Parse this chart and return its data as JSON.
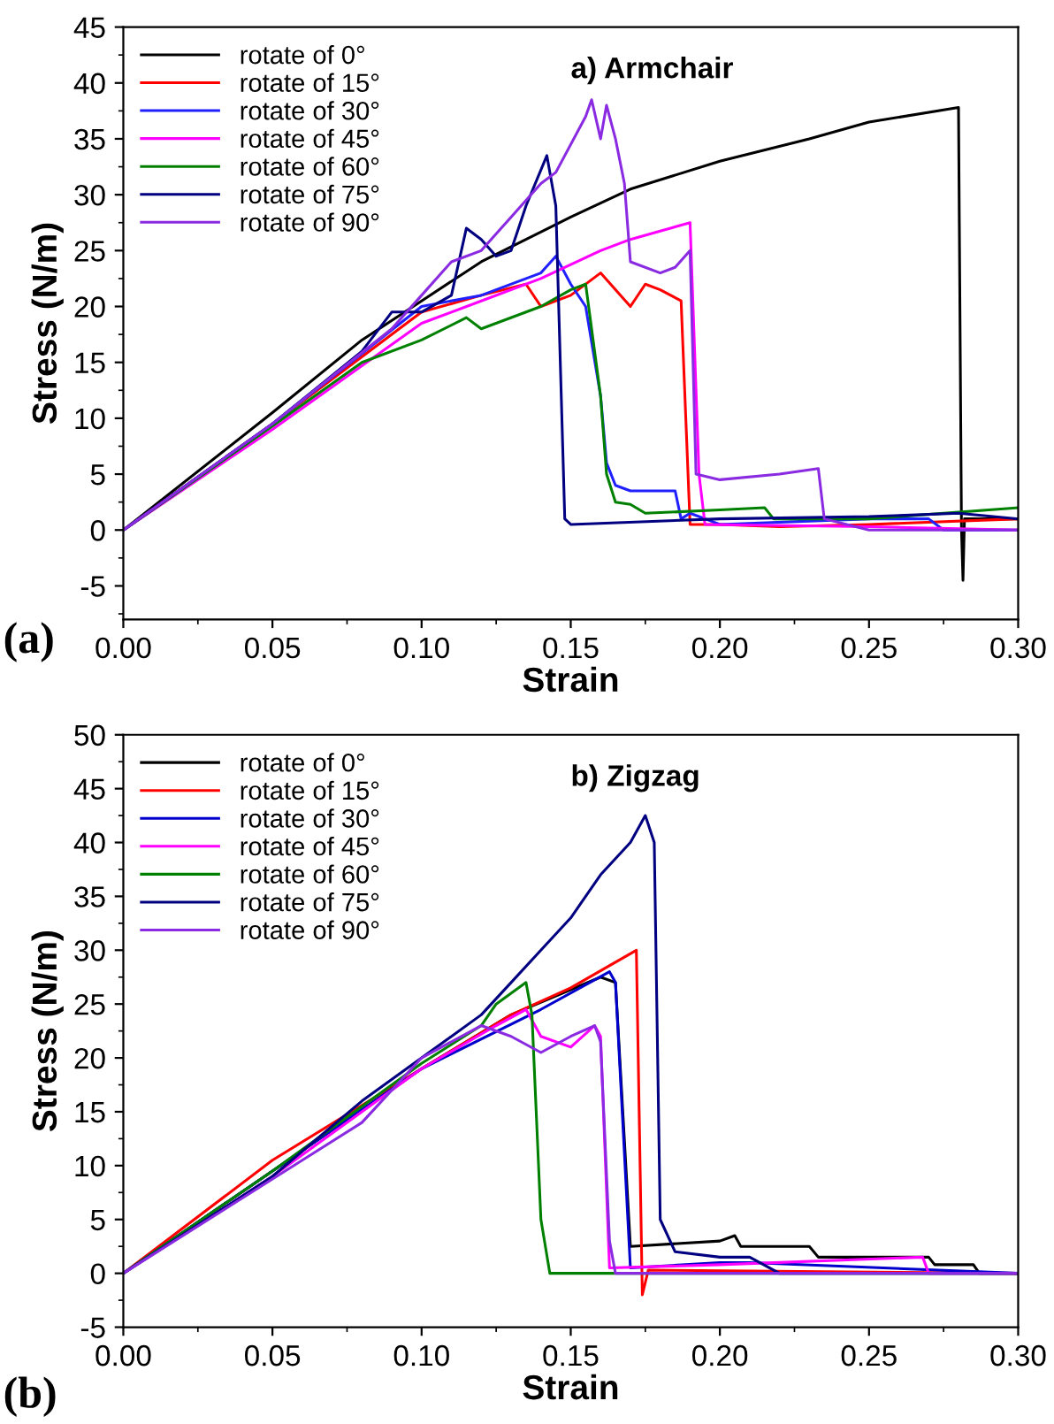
{
  "chart_data": [
    {
      "type": "line",
      "title": "a) Armchair",
      "xlabel": "Strain",
      "ylabel": "Stress (N/m)",
      "annotations": [
        "(a)"
      ],
      "xlim": [
        0,
        0.3
      ],
      "ylim": [
        -8,
        45
      ],
      "xticks": [
        {
          "value": 0,
          "label": "0.00"
        },
        {
          "value": 0.05,
          "label": "0.05"
        },
        {
          "value": 0.1,
          "label": "0.10"
        },
        {
          "value": 0.15,
          "label": "0.15"
        },
        {
          "value": 0.2,
          "label": "0.20"
        },
        {
          "value": 0.25,
          "label": "0.25"
        },
        {
          "value": 0.3,
          "label": "0.30"
        }
      ],
      "yticks": [
        -5,
        0,
        5,
        10,
        15,
        20,
        25,
        30,
        35,
        40,
        45
      ],
      "grid": false,
      "legend": "top left",
      "marker": "none",
      "line_style": "solid",
      "series": [
        {
          "name": "rotate of 0°",
          "color": "#000000",
          "x": [
            0,
            0.05,
            0.08,
            0.1,
            0.12,
            0.15,
            0.17,
            0.2,
            0.23,
            0.25,
            0.28,
            0.281,
            0.2815,
            0.282,
            0.3
          ],
          "values": [
            0,
            10.5,
            17,
            20.5,
            24,
            28,
            30.5,
            33,
            35,
            36.5,
            37.8,
            0,
            -4.5,
            1,
            1
          ]
        },
        {
          "name": "rotate of 15°",
          "color": "#ff0000",
          "x": [
            0,
            0.05,
            0.1,
            0.12,
            0.135,
            0.14,
            0.15,
            0.16,
            0.17,
            0.175,
            0.18,
            0.187,
            0.19,
            0.2,
            0.22,
            0.25,
            0.3
          ],
          "values": [
            0,
            9.5,
            19.5,
            21,
            22,
            20,
            21,
            23,
            20,
            22,
            21.5,
            20.5,
            0.5,
            0.5,
            0.3,
            0.5,
            1
          ]
        },
        {
          "name": "rotate of 30°",
          "color": "#2020ff",
          "x": [
            0,
            0.05,
            0.1,
            0.12,
            0.14,
            0.145,
            0.15,
            0.155,
            0.16,
            0.162,
            0.165,
            0.17,
            0.185,
            0.187,
            0.19,
            0.2,
            0.25,
            0.27,
            0.275,
            0.3
          ],
          "values": [
            0,
            9.5,
            20,
            21,
            23,
            24.5,
            22,
            20,
            12,
            6,
            4,
            3.5,
            3.5,
            1,
            1.5,
            0.5,
            1,
            1,
            0,
            0
          ]
        },
        {
          "name": "rotate of 45°",
          "color": "#ff00ff",
          "x": [
            0,
            0.05,
            0.1,
            0.12,
            0.14,
            0.16,
            0.17,
            0.19,
            0.193,
            0.195,
            0.25,
            0.3
          ],
          "values": [
            0,
            9,
            18.5,
            20.5,
            22.5,
            25,
            26,
            27.5,
            5,
            0.5,
            0.3,
            0
          ]
        },
        {
          "name": "rotate of 60°",
          "color": "#008000",
          "x": [
            0,
            0.05,
            0.08,
            0.1,
            0.115,
            0.12,
            0.14,
            0.15,
            0.155,
            0.16,
            0.162,
            0.165,
            0.17,
            0.175,
            0.2,
            0.215,
            0.218,
            0.25,
            0.3
          ],
          "values": [
            0,
            9.3,
            15,
            17,
            19,
            18,
            20,
            21.5,
            22,
            12,
            5,
            2.5,
            2.3,
            1.5,
            1.8,
            2,
            1,
            1,
            2
          ]
        },
        {
          "name": "rotate of 75°",
          "color": "#000080",
          "x": [
            0,
            0.05,
            0.08,
            0.09,
            0.1,
            0.11,
            0.115,
            0.12,
            0.125,
            0.13,
            0.135,
            0.142,
            0.145,
            0.148,
            0.15,
            0.2,
            0.25,
            0.28,
            0.3
          ],
          "values": [
            0,
            9.5,
            16,
            19.5,
            19.5,
            21,
            27,
            26,
            24.5,
            25,
            29,
            33.5,
            29,
            1,
            0.5,
            1,
            1.2,
            1.5,
            1
          ]
        },
        {
          "name": "rotate of 90°",
          "color": "#8a2be2",
          "x": [
            0,
            0.05,
            0.09,
            0.1,
            0.11,
            0.12,
            0.13,
            0.14,
            0.145,
            0.155,
            0.157,
            0.16,
            0.162,
            0.165,
            0.168,
            0.17,
            0.18,
            0.185,
            0.19,
            0.192,
            0.2,
            0.22,
            0.233,
            0.235,
            0.25,
            0.3
          ],
          "values": [
            0,
            9.5,
            18,
            21,
            24,
            25,
            28,
            31,
            32,
            37,
            38.5,
            35,
            38,
            35,
            31,
            24,
            23,
            23.5,
            25,
            5,
            4.5,
            5,
            5.5,
            1,
            0,
            0
          ]
        }
      ]
    },
    {
      "type": "line",
      "title": "b) Zigzag",
      "xlabel": "Strain",
      "ylabel": "Stress (N/m)",
      "annotations": [
        "(b)"
      ],
      "xlim": [
        0,
        0.3
      ],
      "ylim": [
        -5,
        50
      ],
      "xticks": [
        {
          "value": 0,
          "label": "0.00"
        },
        {
          "value": 0.05,
          "label": "0.05"
        },
        {
          "value": 0.1,
          "label": "0.10"
        },
        {
          "value": 0.15,
          "label": "0.15"
        },
        {
          "value": 0.2,
          "label": "0.20"
        },
        {
          "value": 0.25,
          "label": "0.25"
        },
        {
          "value": 0.3,
          "label": "0.30"
        }
      ],
      "yticks": [
        -5,
        0,
        5,
        10,
        15,
        20,
        25,
        30,
        35,
        40,
        45,
        50
      ],
      "grid": false,
      "legend": "top left",
      "marker": "none",
      "line_style": "solid",
      "series": [
        {
          "name": "rotate of 0°",
          "color": "#000000",
          "x": [
            0,
            0.05,
            0.1,
            0.13,
            0.16,
            0.165,
            0.17,
            0.2,
            0.205,
            0.207,
            0.23,
            0.233,
            0.25,
            0.27,
            0.272,
            0.285,
            0.287,
            0.3
          ],
          "values": [
            0,
            9.5,
            19,
            24,
            27.5,
            27,
            2.5,
            3,
            3.5,
            2.5,
            2.5,
            1.5,
            1.5,
            1.5,
            0.8,
            0.8,
            0,
            0
          ]
        },
        {
          "name": "rotate of 15°",
          "color": "#ff0000",
          "x": [
            0,
            0.05,
            0.1,
            0.13,
            0.15,
            0.172,
            0.174,
            0.176,
            0.3
          ],
          "values": [
            0,
            10.5,
            19,
            24,
            26.5,
            30,
            -2,
            0.3,
            0
          ]
        },
        {
          "name": "rotate of 30°",
          "color": "#0000cd",
          "x": [
            0,
            0.05,
            0.1,
            0.14,
            0.163,
            0.165,
            0.17,
            0.2,
            0.21,
            0.3
          ],
          "values": [
            0,
            9.5,
            19,
            24.5,
            28,
            27,
            0.5,
            1,
            1,
            0
          ]
        },
        {
          "name": "rotate of 45°",
          "color": "#ff00ff",
          "x": [
            0,
            0.05,
            0.1,
            0.125,
            0.135,
            0.14,
            0.15,
            0.158,
            0.16,
            0.163,
            0.2,
            0.268,
            0.27,
            0.3
          ],
          "values": [
            0,
            9,
            19,
            23,
            24.5,
            22,
            21,
            23,
            22,
            0.5,
            0.8,
            1.5,
            0,
            0
          ]
        },
        {
          "name": "rotate of 60°",
          "color": "#008000",
          "x": [
            0,
            0.05,
            0.1,
            0.12,
            0.125,
            0.13,
            0.135,
            0.137,
            0.14,
            0.143,
            0.16,
            0.3
          ],
          "values": [
            0,
            9.5,
            19.5,
            23,
            25,
            26,
            27,
            24,
            5,
            0,
            0,
            0
          ]
        },
        {
          "name": "rotate of 75°",
          "color": "#000080",
          "x": [
            0,
            0.05,
            0.08,
            0.1,
            0.12,
            0.13,
            0.14,
            0.15,
            0.16,
            0.17,
            0.175,
            0.178,
            0.18,
            0.185,
            0.2,
            0.21,
            0.22,
            0.3
          ],
          "values": [
            0,
            9,
            16,
            20,
            24,
            27,
            30,
            33,
            37,
            40,
            42.5,
            40,
            5,
            2,
            1.5,
            1.5,
            0,
            0
          ]
        },
        {
          "name": "rotate of 90°",
          "color": "#8a2be2",
          "x": [
            0,
            0.06,
            0.08,
            0.1,
            0.12,
            0.13,
            0.14,
            0.15,
            0.158,
            0.16,
            0.163,
            0.165,
            0.3
          ],
          "values": [
            0,
            10.5,
            14,
            20,
            23,
            22,
            20.5,
            22,
            23,
            21.5,
            3,
            0,
            0
          ]
        }
      ]
    }
  ]
}
